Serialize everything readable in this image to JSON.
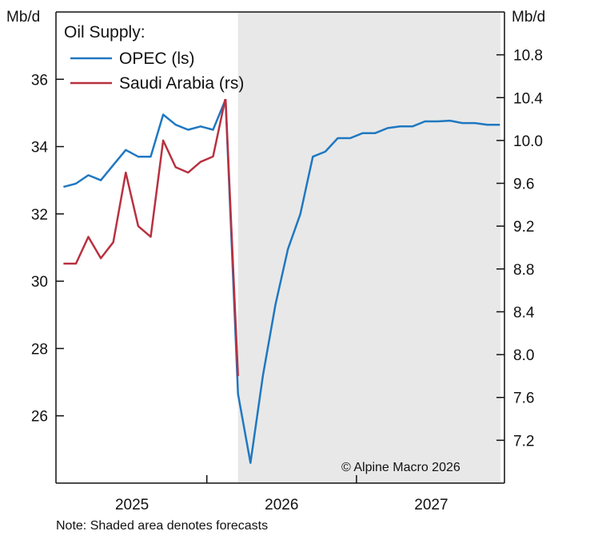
{
  "chart_data": {
    "type": "line",
    "title": "Oil Supply:",
    "left_axis_label": "Mb/d",
    "right_axis_label": "Mb/d",
    "left_ylim": [
      24,
      38
    ],
    "right_ylim": [
      6.8,
      11.2
    ],
    "left_ticks": [
      26,
      28,
      30,
      32,
      34,
      36
    ],
    "right_ticks": [
      "7.2",
      "7.6",
      "8.0",
      "8.4",
      "8.8",
      "9.2",
      "9.6",
      "10.0",
      "10.4",
      "10.8"
    ],
    "x_unit": "month index (0 = Jan 2025)",
    "x_range": [
      -0.6,
      35.05
    ],
    "year_labels": [
      {
        "label": "2025",
        "center": 5.5
      },
      {
        "label": "2026",
        "center": 17.5
      },
      {
        "label": "2027",
        "center": 29.5
      }
    ],
    "year_ticks": [
      11.5,
      23.5
    ],
    "forecast_start": 14,
    "series": [
      {
        "name": "OPEC (ls)",
        "axis": "left",
        "color": "#1f78c1",
        "x": [
          0,
          1,
          2,
          3,
          4,
          5,
          6,
          7,
          8,
          9,
          10,
          11,
          12,
          13,
          14,
          15,
          16,
          17,
          18,
          19,
          20,
          21,
          22,
          23,
          24,
          25,
          26,
          27,
          28,
          29,
          30,
          31,
          32,
          33,
          34,
          35
        ],
        "values": [
          32.8,
          32.9,
          33.15,
          33.0,
          33.45,
          33.9,
          33.7,
          33.7,
          34.95,
          34.65,
          34.5,
          34.6,
          34.5,
          35.4,
          26.65,
          24.6,
          27.2,
          29.3,
          30.95,
          32.0,
          33.7,
          33.85,
          34.25,
          34.25,
          34.4,
          34.4,
          34.55,
          34.6,
          34.6,
          34.75,
          34.75,
          34.77,
          34.7,
          34.7,
          34.65,
          34.65
        ]
      },
      {
        "name": "Saudi Arabia (rs)",
        "axis": "right",
        "color": "#b83140",
        "x": [
          0,
          1,
          2,
          3,
          4,
          5,
          6,
          7,
          8,
          9,
          10,
          11,
          12,
          13,
          14
        ],
        "values": [
          8.85,
          8.85,
          9.1,
          8.9,
          9.05,
          9.7,
          9.2,
          9.1,
          10.0,
          9.75,
          9.7,
          9.8,
          9.85,
          10.4,
          7.8
        ]
      }
    ],
    "annotation": "© Alpine Macro 2026",
    "note": "Note: Shaded area denotes forecasts",
    "shade_color": "#e8e8e8"
  }
}
